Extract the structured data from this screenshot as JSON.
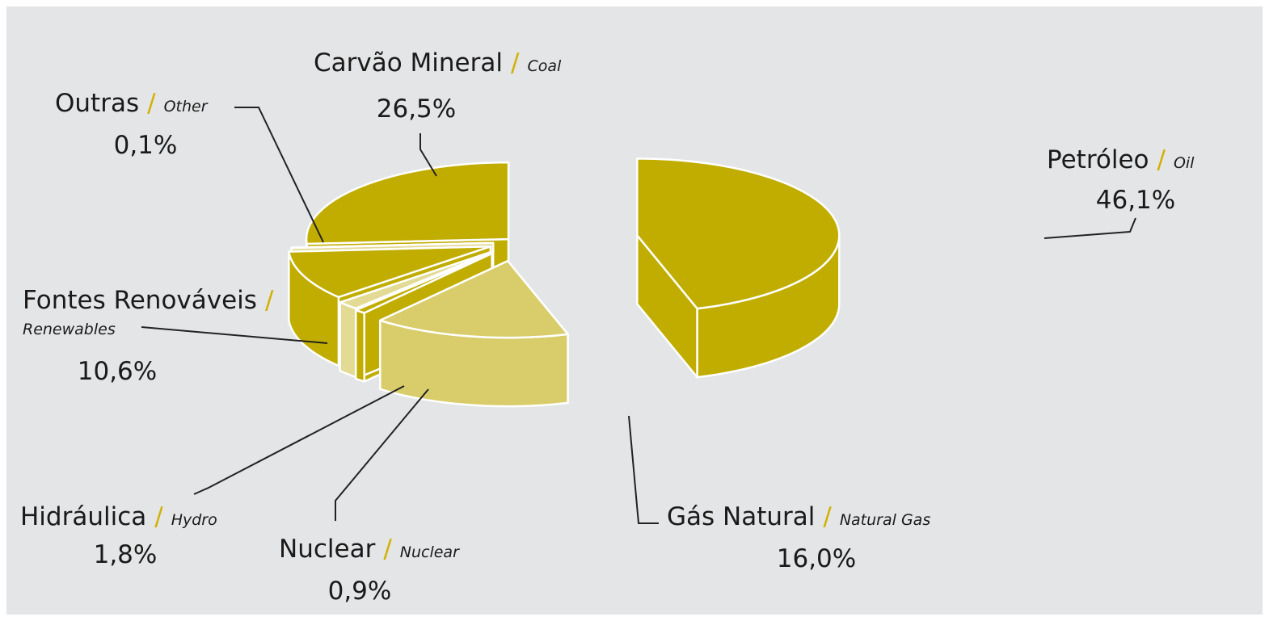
{
  "chart_data": {
    "type": "pie3d",
    "categories": [
      "Petróleo",
      "Gás Natural",
      "Nuclear",
      "Hidráulica",
      "Fontes Renováveis",
      "Outras",
      "Carvão Mineral"
    ],
    "categories_en": [
      "Oil",
      "Natural Gas",
      "Nuclear",
      "Hydro",
      "Renewables",
      "Other",
      "Coal"
    ],
    "separator": "/",
    "values": [
      46.1,
      16.0,
      0.9,
      1.8,
      10.6,
      0.1,
      26.5
    ],
    "value_labels": [
      "46,1%",
      "16,0%",
      "0,9%",
      "1,8%",
      "10,6%",
      "0,1%",
      "26,5%"
    ],
    "colors": [
      "#c1ad00",
      "#d9cc6a",
      "#c1ad00",
      "#e3da94",
      "#c1ad00",
      "#e3da94",
      "#c1ad00"
    ]
  }
}
